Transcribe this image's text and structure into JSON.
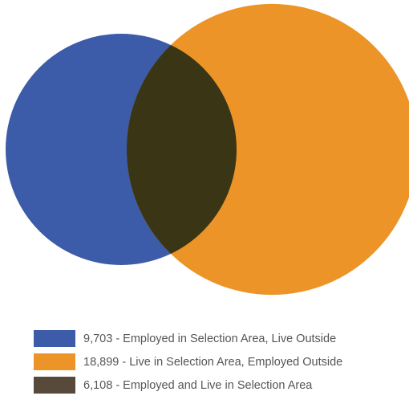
{
  "chart_data": {
    "type": "venn",
    "sets": [
      {
        "key": "employed_in_selection_area_live_outside",
        "value": 9703,
        "label": "9,703 - Employed in Selection Area, Live Outside",
        "color": "#3c5ba8"
      },
      {
        "key": "live_in_selection_area_employed_outside",
        "value": 18899,
        "label": "18,899 - Live in Selection Area, Employed Outside",
        "color": "#ec9428"
      }
    ],
    "overlap": {
      "value": 6108,
      "label": "6,108 - Employed and Live in Selection Area",
      "color": "#3a3515"
    },
    "legend": {
      "position": "bottom-left",
      "items": [
        {
          "label": "9,703 - Employed in Selection Area, Live Outside",
          "color": "#3c5ba8"
        },
        {
          "label": "18,899 - Live in Selection Area, Employed Outside",
          "color": "#ec9428"
        },
        {
          "label": "6,108 - Employed and Live in Selection Area",
          "color": "#574a3a"
        }
      ]
    }
  }
}
